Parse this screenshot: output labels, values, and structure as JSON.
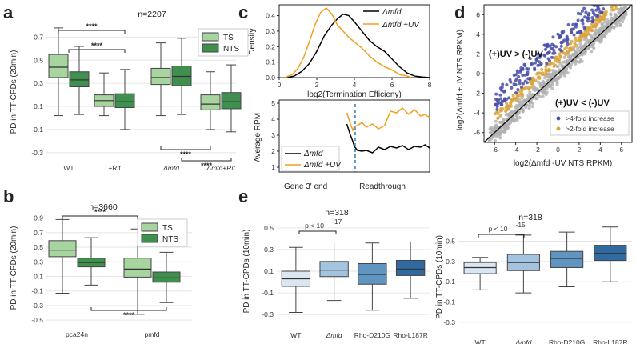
{
  "panels": {
    "a": "a",
    "b": "b",
    "c": "c",
    "d": "d",
    "e": "e"
  },
  "colors": {
    "ts": "#a8d4a0",
    "nts": "#3f8f4f",
    "box_edge": "#333333",
    "black": "#000000",
    "orange": "#f0a020",
    "blue_dash": "#2b7bb9",
    "e_colors": [
      "#dbe6f2",
      "#a4c3de",
      "#5f95c0",
      "#2f6aa0"
    ],
    "scatter_grey": "#b0b0b0",
    "scatter_orange": "#d9a441",
    "scatter_blue": "#4a4fa8"
  },
  "chart_data": [
    {
      "id": "a",
      "type": "boxplot",
      "title": "n=2207",
      "ylabel": "PD in TT-CPDs (20min)",
      "ylim": [
        -0.35,
        0.8
      ],
      "yticks": [
        "0.7",
        "0.5",
        "0.3",
        "0.1",
        "-0.1",
        "-0.3"
      ],
      "ytick_values": [
        0.7,
        0.5,
        0.3,
        0.1,
        -0.1,
        -0.3
      ],
      "categories": [
        "WT",
        "+Rif",
        "Δmfd",
        "Δmfd+Rif"
      ],
      "legend": [
        "TS",
        "NTS"
      ],
      "series": [
        {
          "name": "TS",
          "boxes": [
            {
              "wmin": 0.02,
              "q1": 0.35,
              "med": 0.44,
              "q3": 0.55,
              "wmax": 0.78
            },
            {
              "wmin": 0.02,
              "q1": 0.1,
              "med": 0.15,
              "q3": 0.2,
              "wmax": 0.39
            },
            {
              "wmin": 0.02,
              "q1": 0.29,
              "med": 0.35,
              "q3": 0.43,
              "wmax": 0.65
            },
            {
              "wmin": -0.1,
              "q1": 0.07,
              "med": 0.12,
              "q3": 0.2,
              "wmax": 0.4
            }
          ]
        },
        {
          "name": "NTS",
          "boxes": [
            {
              "wmin": 0.03,
              "q1": 0.27,
              "med": 0.33,
              "q3": 0.4,
              "wmax": 0.62
            },
            {
              "wmin": -0.1,
              "q1": 0.09,
              "med": 0.14,
              "q3": 0.21,
              "wmax": 0.42
            },
            {
              "wmin": 0.03,
              "q1": 0.28,
              "med": 0.36,
              "q3": 0.45,
              "wmax": 0.69
            },
            {
              "wmin": -0.12,
              "q1": 0.08,
              "med": 0.14,
              "q3": 0.22,
              "wmax": 0.46
            }
          ]
        }
      ],
      "significance": [
        "****",
        "****",
        "****",
        "****"
      ]
    },
    {
      "id": "b",
      "type": "boxplot",
      "title": "n=3660",
      "ylabel": "PD in TT-CPDs (20min)",
      "ylim": [
        -0.52,
        0.95
      ],
      "yticks": [
        "0.9",
        "0.7",
        "0.5",
        "0.3",
        "0.1",
        "-0.1",
        "-0.3",
        "-0.5"
      ],
      "ytick_values": [
        0.9,
        0.7,
        0.5,
        0.3,
        0.1,
        -0.1,
        -0.3,
        -0.5
      ],
      "categories": [
        "pca24n",
        "pmfd"
      ],
      "legend": [
        "TS",
        "NTS"
      ],
      "series": [
        {
          "name": "TS",
          "boxes": [
            {
              "wmin": -0.13,
              "q1": 0.37,
              "med": 0.46,
              "q3": 0.59,
              "wmax": 0.88
            },
            {
              "wmin": -0.42,
              "q1": 0.09,
              "med": 0.2,
              "q3": 0.35,
              "wmax": 0.75
            }
          ]
        },
        {
          "name": "NTS",
          "boxes": [
            {
              "wmin": -0.02,
              "q1": 0.23,
              "med": 0.29,
              "q3": 0.35,
              "wmax": 0.63
            },
            {
              "wmin": -0.26,
              "q1": 0.02,
              "med": 0.08,
              "q3": 0.16,
              "wmax": 0.43
            }
          ]
        }
      ],
      "significance": [
        "****",
        "****"
      ]
    },
    {
      "id": "c_top",
      "type": "line",
      "ylabel": "Density",
      "xlabel": "log2(Termination Efficieny)",
      "xlim": [
        0,
        8
      ],
      "xticks": [
        "0",
        "2",
        "4",
        "6",
        "8"
      ],
      "xtick_values": [
        0,
        2,
        4,
        6,
        8
      ],
      "ylim": [
        0,
        0.47
      ],
      "yticks": [
        "0.4",
        "0.3",
        "0.2",
        "0.1",
        "0.0"
      ],
      "ytick_values": [
        0.4,
        0.3,
        0.2,
        0.1,
        0.0
      ],
      "series": [
        {
          "name": "Δmfd",
          "color": "black",
          "x": [
            0.4,
            0.8,
            1.2,
            1.6,
            2.0,
            2.4,
            2.8,
            3.1,
            3.4,
            3.7,
            4.0,
            4.4,
            4.8,
            5.2,
            5.6,
            6.0,
            6.4,
            6.8,
            7.2,
            7.6,
            8.0
          ],
          "y": [
            0.0,
            0.01,
            0.04,
            0.09,
            0.17,
            0.27,
            0.34,
            0.38,
            0.41,
            0.4,
            0.36,
            0.3,
            0.24,
            0.2,
            0.17,
            0.12,
            0.07,
            0.03,
            0.01,
            0.004,
            0.0
          ]
        },
        {
          "name": "Δmfd +UV",
          "color": "orange",
          "x": [
            0.3,
            0.7,
            1.0,
            1.3,
            1.6,
            1.9,
            2.2,
            2.5,
            2.8,
            3.1,
            3.4,
            3.7,
            4.0,
            4.4,
            4.8,
            5.2,
            5.6,
            6.0,
            6.4,
            6.8,
            7.0
          ],
          "y": [
            0.0,
            0.02,
            0.06,
            0.13,
            0.23,
            0.34,
            0.42,
            0.45,
            0.41,
            0.34,
            0.3,
            0.26,
            0.23,
            0.19,
            0.14,
            0.1,
            0.07,
            0.05,
            0.02,
            0.01,
            0.0
          ]
        }
      ],
      "legend": [
        "Δmfd",
        "Δmfd +UV"
      ]
    },
    {
      "id": "c_bottom",
      "type": "line",
      "ylabel": "Average RPM",
      "xlim": [
        0,
        1
      ],
      "ylim": [
        0.7,
        5.2
      ],
      "yticks": [
        "5",
        "4",
        "3",
        "2",
        "1"
      ],
      "ytick_values": [
        5,
        4,
        3,
        2,
        1
      ],
      "xticklabels": [
        "Gene 3' end",
        "Readthrough"
      ],
      "series": [
        {
          "name": "Δmfd",
          "color": "black",
          "x": [
            0.45,
            0.47,
            0.49,
            0.5,
            0.52,
            0.55,
            0.58,
            0.62,
            0.66,
            0.7,
            0.74,
            0.78,
            0.82,
            0.86,
            0.9,
            0.94,
            0.97,
            1.0
          ],
          "y": [
            3.7,
            3.1,
            2.6,
            2.3,
            2.05,
            2.0,
            2.05,
            1.9,
            2.25,
            2.1,
            2.3,
            2.2,
            2.35,
            2.1,
            2.3,
            2.25,
            2.4,
            2.2
          ]
        },
        {
          "name": "Δmfd +UV",
          "color": "orange",
          "x": [
            0.45,
            0.47,
            0.49,
            0.5,
            0.52,
            0.55,
            0.58,
            0.62,
            0.66,
            0.7,
            0.74,
            0.78,
            0.82,
            0.86,
            0.9,
            0.94,
            0.97,
            1.0
          ],
          "y": [
            4.4,
            3.8,
            3.3,
            3.55,
            3.6,
            3.8,
            3.5,
            3.7,
            3.4,
            3.6,
            4.5,
            4.4,
            4.7,
            4.3,
            4.6,
            4.2,
            4.3,
            4.1
          ]
        }
      ],
      "legend": [
        "Δmfd",
        "Δmfd +UV"
      ]
    },
    {
      "id": "d",
      "type": "scatter",
      "xlabel": "log2(Δmfd -UV NTS RPKM)",
      "ylabel": "log2(Δmfd +UV NTS RPKM)",
      "xlim": [
        -7,
        7
      ],
      "ylim": [
        -7,
        7
      ],
      "xticks": [
        "-6",
        "-4",
        "-2",
        "0",
        "2",
        "4",
        "6"
      ],
      "xtick_values": [
        -6,
        -4,
        -2,
        0,
        2,
        4,
        6
      ],
      "yticks": [
        "6",
        "4",
        "2",
        "0",
        "-2",
        "-4",
        "-6"
      ],
      "ytick_values": [
        6,
        4,
        2,
        0,
        -2,
        -4,
        -6
      ],
      "annotations": [
        "(+)UV > (-)UV",
        "(+)UV < (-)UV"
      ],
      "legend": [
        ">4-fold increase",
        ">2-fold increase"
      ],
      "diagonal": true
    },
    {
      "id": "e_left",
      "type": "boxplot",
      "title": "n=318",
      "ylabel": "PD in TT-CPDs (10min)",
      "ylim": [
        -0.38,
        0.58
      ],
      "yticks": [
        "0.5",
        "0.3",
        "0.1",
        "-0.1",
        "-0.3"
      ],
      "ytick_values": [
        0.5,
        0.3,
        0.1,
        -0.1,
        -0.3
      ],
      "categories": [
        "WT",
        "Δmfd",
        "Rho-D210G",
        "Rho-L187R"
      ],
      "boxes": [
        {
          "wmin": -0.28,
          "q1": -0.04,
          "med": 0.03,
          "q3": 0.1,
          "wmax": 0.32
        },
        {
          "wmin": -0.17,
          "q1": 0.05,
          "med": 0.11,
          "q3": 0.19,
          "wmax": 0.37
        },
        {
          "wmin": -0.26,
          "q1": -0.02,
          "med": 0.07,
          "q3": 0.17,
          "wmax": 0.36
        },
        {
          "wmin": -0.15,
          "q1": 0.06,
          "med": 0.12,
          "q3": 0.2,
          "wmax": 0.37
        }
      ],
      "significance": "p < 10",
      "sig_exp": "-17"
    },
    {
      "id": "e_right",
      "type": "boxplot",
      "title": "n=318",
      "ylabel": "PD in TT-CPDs (10min)",
      "ylim": [
        -0.38,
        0.67
      ],
      "yticks": [
        "0.5",
        "0.3",
        "0.1",
        "-0.1",
        "-0.3"
      ],
      "ytick_values": [
        0.5,
        0.3,
        0.1,
        -0.1,
        -0.3
      ],
      "categories": [
        "WT",
        "Δmfd",
        "Rho-D210G",
        "Rho-L187R"
      ],
      "boxes": [
        {
          "wmin": 0.02,
          "q1": 0.18,
          "med": 0.24,
          "q3": 0.29,
          "wmax": 0.34
        },
        {
          "wmin": -0.01,
          "q1": 0.21,
          "med": 0.29,
          "q3": 0.37,
          "wmax": 0.56
        },
        {
          "wmin": 0.05,
          "q1": 0.24,
          "med": 0.33,
          "q3": 0.4,
          "wmax": 0.59
        },
        {
          "wmin": 0.1,
          "q1": 0.31,
          "med": 0.38,
          "q3": 0.46,
          "wmax": 0.64
        }
      ],
      "significance": "p < 10",
      "sig_exp": "-15"
    }
  ]
}
